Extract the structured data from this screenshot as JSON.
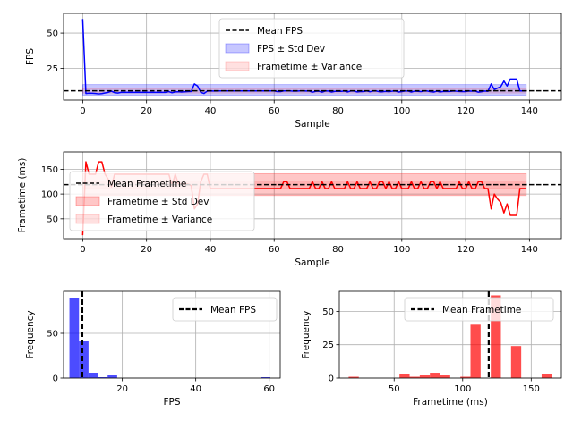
{
  "colors": {
    "fps": "#0000ff",
    "frametime": "#ff0000",
    "mean": "#000000",
    "grid": "#b0b0b0"
  },
  "chart_data": [
    {
      "type": "line",
      "id": "fps-line",
      "xlabel": "Sample",
      "ylabel": "FPS",
      "xlim": [
        -6,
        150
      ],
      "ylim": [
        2.5,
        64
      ],
      "xticks": [
        0,
        20,
        40,
        60,
        80,
        100,
        120,
        140
      ],
      "yticks": [
        25,
        50
      ],
      "grid": true,
      "mean": 9.1,
      "std_band": [
        6.0,
        13.5
      ],
      "var_band": [
        7.5,
        10.5
      ],
      "legend_placement": "top-center",
      "legend": [
        "Mean FPS",
        "FPS ± Std Dev",
        "Frametime ± Variance"
      ],
      "series": [
        {
          "name": "FPS",
          "values": [
            60,
            7.2,
            7.4,
            7.3,
            7.2,
            6.9,
            7.1,
            7.6,
            8.0,
            8.8,
            7.8,
            7.5,
            8.0,
            8.0,
            8.0,
            8.0,
            8.0,
            8.0,
            8.0,
            8.0,
            8.0,
            8.0,
            8.0,
            8.0,
            8.0,
            8.0,
            8.0,
            8.5,
            7.7,
            8.3,
            8.4,
            8.2,
            8.4,
            8.5,
            8.6,
            14.0,
            12.5,
            8.0,
            7.2,
            8.8,
            9.0,
            8.9,
            8.9,
            9.0,
            9.0,
            9.0,
            9.0,
            9.0,
            9.0,
            9.0,
            9.0,
            9.0,
            9.0,
            9.0,
            9.0,
            9.0,
            9.0,
            9.0,
            9.0,
            9.0,
            9.0,
            8.5,
            8.5,
            9.0,
            9.0,
            9.0,
            8.8,
            8.8,
            9.0,
            9.0,
            8.9,
            8.9,
            8.1,
            8.7,
            8.8,
            8.1,
            8.9,
            8.9,
            8.2,
            8.7,
            8.7,
            8.7,
            8.9,
            8.3,
            8.9,
            8.9,
            8.3,
            8.5,
            8.5,
            9.0,
            8.4,
            8.9,
            8.9,
            8.4,
            8.4,
            8.7,
            8.4,
            8.8,
            8.9,
            8.2,
            8.5,
            8.9,
            8.9,
            8.2,
            8.8,
            8.7,
            8.5,
            8.9,
            8.9,
            8.4,
            8.2,
            8.8,
            8.3,
            8.6,
            8.6,
            8.6,
            8.8,
            8.8,
            8.6,
            8.5,
            8.5,
            8.9,
            8.8,
            8.9,
            8.1,
            8.4,
            8.9,
            8.7,
            14.0,
            10.0,
            11.0,
            12.0,
            16.0,
            12.5,
            17.5,
            17.5,
            17.5,
            9.0,
            9.0,
            9.0
          ]
        }
      ]
    },
    {
      "type": "line",
      "id": "frametime-line",
      "xlabel": "Sample",
      "ylabel": "Frametime (ms)",
      "xlim": [
        -6,
        150
      ],
      "ylim": [
        10,
        185
      ],
      "xticks": [
        0,
        20,
        40,
        60,
        80,
        100,
        120,
        140
      ],
      "yticks": [
        50,
        100,
        150
      ],
      "grid": true,
      "mean": 119,
      "std_band": [
        97,
        141
      ],
      "var_band": [
        112,
        126
      ],
      "legend_placement": "center-left",
      "legend": [
        "Mean Frametime",
        "Frametime ± Std Dev",
        "Frametime ± Variance"
      ],
      "series": [
        {
          "name": "Frametime",
          "values": [
            17,
            165,
            140,
            140,
            140,
            165,
            165,
            140,
            130,
            115,
            140,
            140,
            140,
            140,
            140,
            140,
            140,
            140,
            140,
            140,
            140,
            140,
            140,
            140,
            140,
            140,
            140,
            140,
            117,
            140,
            120,
            120,
            120,
            120,
            117,
            70,
            80,
            125,
            140,
            140,
            111,
            111,
            111,
            111,
            111,
            111,
            111,
            111,
            111,
            111,
            111,
            111,
            111,
            111,
            111,
            111,
            111,
            111,
            111,
            111,
            111,
            111,
            111,
            125,
            125,
            111,
            111,
            111,
            111,
            111,
            111,
            111,
            125,
            111,
            111,
            125,
            111,
            111,
            125,
            111,
            111,
            111,
            111,
            125,
            111,
            111,
            125,
            111,
            111,
            111,
            125,
            111,
            111,
            125,
            125,
            111,
            125,
            111,
            111,
            125,
            111,
            111,
            111,
            125,
            111,
            111,
            125,
            111,
            111,
            125,
            125,
            111,
            125,
            111,
            111,
            111,
            111,
            111,
            125,
            111,
            111,
            125,
            111,
            111,
            125,
            125,
            111,
            111,
            70,
            100,
            90,
            83,
            62,
            80,
            57,
            57,
            57,
            111,
            111,
            111
          ]
        }
      ]
    },
    {
      "type": "bar",
      "id": "fps-hist",
      "xlabel": "FPS",
      "ylabel": "Frequency",
      "xlim": [
        4,
        63
      ],
      "ylim": [
        0,
        97
      ],
      "xticks": [
        20,
        40,
        60
      ],
      "yticks": [
        0,
        50
      ],
      "grid": true,
      "mean": 9.1,
      "bin_width": 2.6,
      "legend_placement": "upper-right",
      "legend": [
        "Mean FPS"
      ],
      "bins": [
        {
          "x": 6.9,
          "value": 90
        },
        {
          "x": 9.5,
          "value": 42
        },
        {
          "x": 12.1,
          "value": 6
        },
        {
          "x": 14.7,
          "value": 1
        },
        {
          "x": 17.3,
          "value": 3
        },
        {
          "x": 59.0,
          "value": 1
        }
      ]
    },
    {
      "type": "bar",
      "id": "frametime-hist",
      "xlabel": "Frametime (ms)",
      "ylabel": "Frequency",
      "xlim": [
        10,
        172
      ],
      "ylim": [
        0,
        65
      ],
      "xticks": [
        50,
        100,
        150
      ],
      "yticks": [
        0,
        25,
        50
      ],
      "grid": true,
      "mean": 119,
      "bin_width": 7.4,
      "legend_placement": "upper-right",
      "legend": [
        "Mean Frametime"
      ],
      "bins": [
        {
          "x": 20.5,
          "value": 1
        },
        {
          "x": 57.6,
          "value": 3
        },
        {
          "x": 65.0,
          "value": 1
        },
        {
          "x": 72.4,
          "value": 2
        },
        {
          "x": 79.8,
          "value": 4
        },
        {
          "x": 87.2,
          "value": 2
        },
        {
          "x": 102.0,
          "value": 1
        },
        {
          "x": 109.4,
          "value": 40
        },
        {
          "x": 124.2,
          "value": 62
        },
        {
          "x": 139.0,
          "value": 24
        },
        {
          "x": 161.3,
          "value": 3
        }
      ]
    }
  ]
}
